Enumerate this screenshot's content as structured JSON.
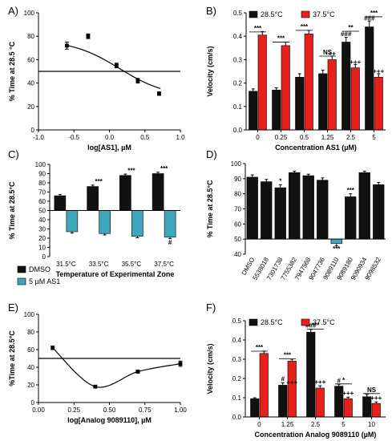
{
  "colors": {
    "black": "#111111",
    "red": "#e8201c",
    "teal": "#3fa7bc"
  },
  "chart_data": [
    {
      "panel": "A)",
      "type": "scatter",
      "xlabel": "log[AS1], µM",
      "ylabel": "% Time at 28.5 °C",
      "xlim": [
        -1.0,
        1.0
      ],
      "ylim": [
        0,
        100
      ],
      "xticks": [
        "-1.0",
        "-0.5",
        "0.0",
        "0.5",
        "1.0"
      ],
      "yticks": [
        "0",
        "20",
        "40",
        "60",
        "80",
        "100"
      ],
      "reference_line": 50,
      "points": [
        {
          "x": -0.6,
          "y": 72,
          "err": 3
        },
        {
          "x": -0.3,
          "y": 80,
          "err": 2
        },
        {
          "x": 0.1,
          "y": 55,
          "err": 2
        },
        {
          "x": 0.4,
          "y": 42,
          "err": 2
        },
        {
          "x": 0.7,
          "y": 31,
          "err": 1.5
        }
      ],
      "fit_curve": {
        "bottom": 28,
        "top": 77,
        "log_ic50": 0.14,
        "hill": -1.3
      }
    },
    {
      "panel": "B)",
      "type": "bar",
      "xlabel": "Concentration AS1 (µM)",
      "ylabel": "Velocity (cm/s)",
      "ylim": [
        0,
        0.5
      ],
      "yticks": [
        "0.0",
        "0.1",
        "0.2",
        "0.3",
        "0.4",
        "0.5"
      ],
      "categories": [
        "0",
        "0.25",
        "0.5",
        "1.25",
        "2.5",
        "5"
      ],
      "series": [
        {
          "name": "28.5°C",
          "color": "black",
          "values": [
            0.165,
            0.17,
            0.225,
            0.24,
            0.375,
            0.44
          ],
          "errors": [
            0.01,
            0.01,
            0.015,
            0.015,
            0.02,
            0.025
          ]
        },
        {
          "name": "37.5°C",
          "color": "red",
          "values": [
            0.405,
            0.36,
            0.41,
            0.3,
            0.265,
            0.225
          ],
          "errors": [
            0.015,
            0.015,
            0.015,
            0.015,
            0.015,
            0.015
          ]
        }
      ],
      "annotations": [
        {
          "text": "***",
          "cat": 0,
          "y": 0.425
        },
        {
          "text": "***",
          "cat": 1,
          "y": 0.382
        },
        {
          "text": "***",
          "cat": 2,
          "y": 0.432
        },
        {
          "text": "NS",
          "cat": 3,
          "y": 0.322
        },
        {
          "text": "**",
          "cat": 4,
          "y": 0.428
        },
        {
          "text": "***",
          "cat": 5,
          "y": 0.49
        },
        {
          "text": "++",
          "cat": 3,
          "series": 1,
          "y": 0.316
        },
        {
          "text": "###",
          "cat": 4,
          "series": 0,
          "y": 0.4
        },
        {
          "text": "+++",
          "cat": 4,
          "series": 1,
          "y": 0.281
        },
        {
          "text": "###",
          "cat": 5,
          "series": 0,
          "y": 0.468
        },
        {
          "text": "+++",
          "cat": 5,
          "series": 1,
          "y": 0.241
        }
      ]
    },
    {
      "panel": "C)",
      "type": "bar",
      "xlabel": "Temperature of Experimental Zone",
      "ylabel": "% Time at 28.5°C",
      "ylim": [
        0,
        100
      ],
      "yticks": [
        "0",
        "10",
        "20",
        "30",
        "40",
        "50",
        "60",
        "70",
        "80",
        "90",
        "100"
      ],
      "baseline": 50,
      "categories": [
        "31.5°C",
        "33.5°C",
        "35.5°C",
        "37.5°C"
      ],
      "series": [
        {
          "name": "DMSO",
          "color": "black",
          "values": [
            66,
            76,
            88,
            90
          ],
          "errors": [
            1.5,
            1.5,
            1.5,
            1.5
          ]
        },
        {
          "name": "5 µM AS1",
          "color": "teal",
          "values": [
            27,
            25,
            22,
            21
          ],
          "errors": [
            1.5,
            1.5,
            1.5,
            1.5
          ]
        }
      ],
      "annotations": [
        {
          "text": "***",
          "cat": 1,
          "y": 79
        },
        {
          "text": "***",
          "cat": 2,
          "y": 91
        },
        {
          "text": "***",
          "cat": 3,
          "y": 93
        },
        {
          "text": "#",
          "cat": 3,
          "series": 1,
          "y": 13
        }
      ]
    },
    {
      "panel": "D)",
      "type": "bar",
      "xlabel": "",
      "ylabel": "% Time at 28.5°C",
      "ylim": [
        40,
        100
      ],
      "yticks": [
        "40",
        "50",
        "60",
        "70",
        "80",
        "90",
        "100"
      ],
      "baseline": 50,
      "categories": [
        "DMSO",
        "5538018",
        "7301738",
        "7755382",
        "7947568",
        "9047736",
        "9089110",
        "9089180",
        "9090934",
        "9098532"
      ],
      "series": [
        {
          "name": "",
          "color": "black",
          "values": [
            91,
            88,
            84,
            94,
            92,
            89,
            47,
            78,
            94,
            86
          ],
          "errors": [
            1.5,
            1.5,
            2,
            1,
            1,
            1.5,
            1.5,
            2,
            1,
            1.5
          ]
        }
      ],
      "bar_colors": [
        "black",
        "black",
        "black",
        "black",
        "black",
        "black",
        "teal",
        "black",
        "black",
        "black"
      ],
      "annotations": [
        {
          "text": "*",
          "cat": 2,
          "y": 87
        },
        {
          "text": "***",
          "cat": 6,
          "y": 42
        },
        {
          "text": "***",
          "cat": 7,
          "y": 81
        }
      ]
    },
    {
      "panel": "E)",
      "type": "scatter",
      "xlabel": "log[Analog 9089110], µM",
      "ylabel": "%Time at 28.5°C",
      "xlim": [
        0,
        1.0
      ],
      "ylim": [
        0,
        100
      ],
      "xticks": [
        "0.00",
        "0.25",
        "0.50",
        "0.75",
        "1.00"
      ],
      "yticks": [
        "0",
        "20",
        "40",
        "60",
        "80",
        "100"
      ],
      "reference_line": 50,
      "points": [
        {
          "x": 0.1,
          "y": 62,
          "err": 2
        },
        {
          "x": 0.4,
          "y": 18,
          "err": 1
        },
        {
          "x": 0.7,
          "y": 35,
          "err": 1.5
        },
        {
          "x": 1.0,
          "y": 44,
          "err": 3
        }
      ]
    },
    {
      "panel": "F)",
      "type": "bar",
      "xlabel": "Concentration Analog 9089110 (µM)",
      "ylabel": "Velocity (cm/s)",
      "ylim": [
        0,
        0.5
      ],
      "yticks": [
        "0.0",
        "0.1",
        "0.2",
        "0.3",
        "0.4",
        "0.5"
      ],
      "categories": [
        "0",
        "1.25",
        "2.5",
        "5",
        "10"
      ],
      "series": [
        {
          "name": "28.5°C",
          "color": "black",
          "values": [
            0.095,
            0.165,
            0.44,
            0.16,
            0.105
          ],
          "errors": [
            0.005,
            0.012,
            0.015,
            0.01,
            0.012
          ]
        },
        {
          "name": "37.5°C",
          "color": "red",
          "values": [
            0.33,
            0.29,
            0.15,
            0.095,
            0.07
          ],
          "errors": [
            0.012,
            0.01,
            0.012,
            0.008,
            0.008
          ]
        }
      ],
      "annotations": [
        {
          "text": "***",
          "cat": 0,
          "y": 0.35
        },
        {
          "text": "***",
          "cat": 1,
          "y": 0.31
        },
        {
          "text": "***",
          "cat": 2,
          "y": 0.465
        },
        {
          "text": "*",
          "cat": 3,
          "y": 0.18
        },
        {
          "text": "NS",
          "cat": 4,
          "y": 0.13
        },
        {
          "text": "#",
          "cat": 1,
          "series": 0,
          "y": 0.185
        },
        {
          "text": "+++",
          "cat": 1,
          "series": 1,
          "y": 0.168
        },
        {
          "text": "###",
          "cat": 2,
          "series": 0,
          "y": 0.464
        },
        {
          "text": "+++",
          "cat": 2,
          "series": 1,
          "y": 0.17
        },
        {
          "text": "#",
          "cat": 3,
          "series": 0,
          "y": 0.178
        },
        {
          "text": "+++",
          "cat": 3,
          "series": 1,
          "y": 0.112
        },
        {
          "text": "+++",
          "cat": 4,
          "series": 1,
          "y": 0.088
        }
      ]
    }
  ]
}
